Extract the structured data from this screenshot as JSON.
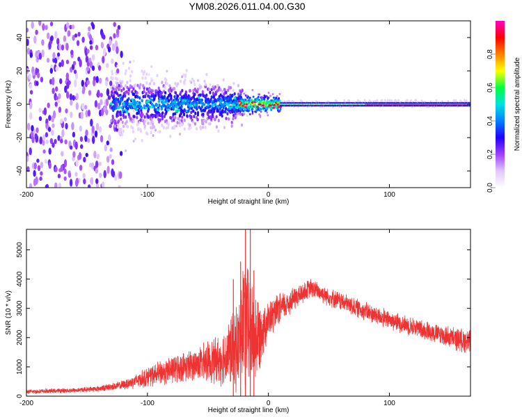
{
  "title": "YM08.2026.011.04.00.G30",
  "chart_data": [
    {
      "type": "heatmap",
      "xlabel": "Height of straight line (km)",
      "ylabel": "Frequency (Hz)",
      "xlim": [
        -200,
        167
      ],
      "ylim": [
        -50,
        50
      ],
      "xticks": [
        -200,
        -100,
        0,
        100
      ],
      "yticks": [
        -40,
        -20,
        0,
        20,
        40
      ],
      "grid": false,
      "colorbar": {
        "label": "Normalized spectral amplitude",
        "range": [
          0,
          1
        ],
        "ticks": [
          0.0,
          0.2,
          0.4,
          0.6,
          0.8
        ],
        "colormap": [
          "#ffffff",
          "#e0c8ff",
          "#a040ff",
          "#2000ff",
          "#0080ff",
          "#00e0e0",
          "#00ff40",
          "#ffff00",
          "#ff8000",
          "#ff0000",
          "#ff00c0"
        ]
      },
      "regions": [
        {
          "x": [
            -200,
            -125
          ],
          "freq_spread": 50,
          "amplitude": "low (0.1-0.3)"
        },
        {
          "x": [
            -130,
            -25
          ],
          "freq_spread": 12,
          "amplitude": "medium (0.2-0.5)"
        },
        {
          "x": [
            -25,
            10
          ],
          "freq_spread": 5,
          "amplitude": "high near 0 Hz"
        },
        {
          "x": [
            10,
            167
          ],
          "freq_spread": 3,
          "amplitude": "peak (~0.9) at 0 Hz"
        }
      ]
    },
    {
      "type": "line",
      "xlabel": "Height of straight line (km)",
      "ylabel": "SNR (10 * v/v)",
      "xlim": [
        -200,
        167
      ],
      "ylim": [
        0,
        5700
      ],
      "xticks": [
        -200,
        -100,
        0,
        100
      ],
      "yticks": [
        0,
        1000,
        2000,
        3000,
        4000,
        5000
      ],
      "color": "#ee3333",
      "grid": false,
      "envelope": {
        "x": [
          -200,
          -160,
          -140,
          -120,
          -100,
          -80,
          -60,
          -40,
          -25,
          -20,
          -15,
          -10,
          -5,
          0,
          10,
          20,
          35,
          50,
          80,
          100,
          130,
          150,
          167
        ],
        "mean": [
          150,
          200,
          260,
          380,
          650,
          900,
          1100,
          1250,
          1700,
          2600,
          2200,
          2000,
          2300,
          2600,
          3000,
          3300,
          3700,
          3400,
          2900,
          2600,
          2250,
          2000,
          1850
        ],
        "spread": [
          70,
          80,
          90,
          150,
          320,
          450,
          500,
          800,
          1400,
          2200,
          1800,
          1500,
          900,
          600,
          500,
          400,
          300,
          300,
          300,
          300,
          300,
          350,
          400
        ]
      },
      "peaks": [
        {
          "x": -19,
          "y": 5700
        },
        {
          "x": -15,
          "y": 5700
        },
        {
          "x": -23,
          "y": 4600
        },
        {
          "x": -12,
          "y": 4300
        },
        {
          "x": -29,
          "y": 4000
        }
      ]
    }
  ]
}
